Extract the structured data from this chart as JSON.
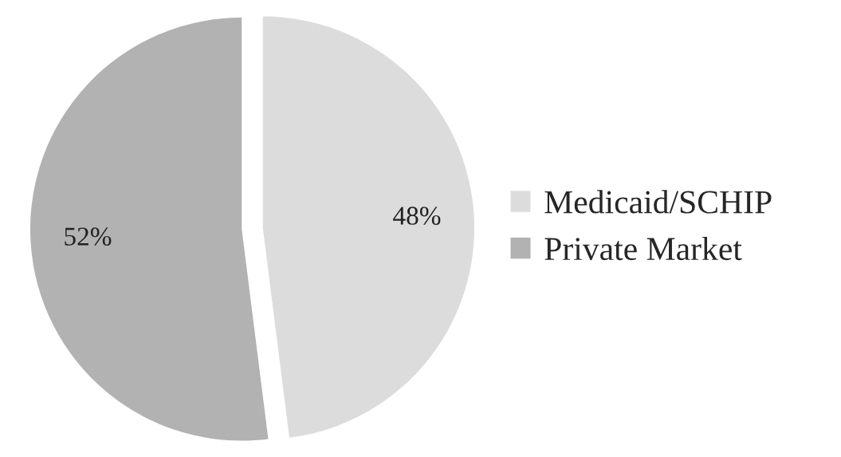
{
  "chart_data": {
    "type": "pie",
    "categories": [
      "Medicaid/SCHIP",
      "Private Market"
    ],
    "values": [
      48,
      52
    ],
    "value_labels": [
      "48%",
      "52%"
    ],
    "colors": [
      "#dcdcdc",
      "#b2b2b2"
    ],
    "legend": "right"
  }
}
